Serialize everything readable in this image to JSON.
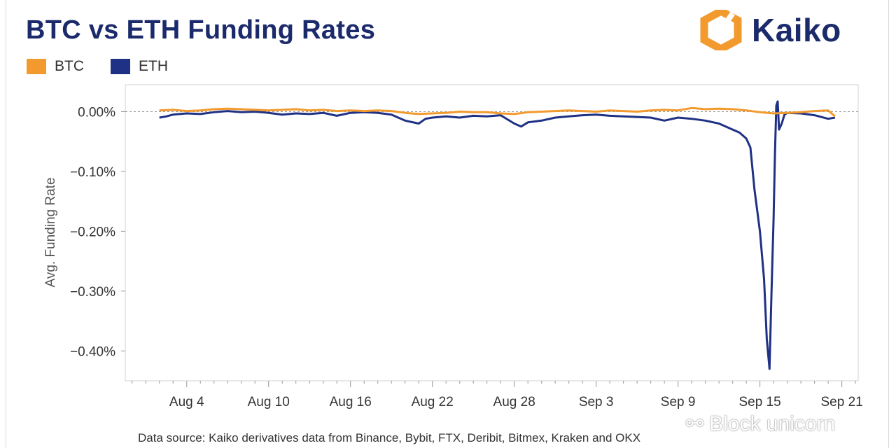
{
  "title": "BTC vs ETH Funding Rates",
  "brand": {
    "name": "Kaiko"
  },
  "legend": [
    {
      "label": "BTC",
      "color": "#f29a2e"
    },
    {
      "label": "ETH",
      "color": "#1f3184"
    }
  ],
  "source_note": "Data source: Kaiko derivatives data from Binance, Bybit, FTX, Deribit, Bitmex, Kraken and OKX",
  "watermark": "Block unicorn",
  "chart_data": {
    "type": "line",
    "title": "BTC vs ETH Funding Rates",
    "ylabel": "Avg. Funding Rate",
    "xlabel": "",
    "ylim": [
      -0.45,
      0.045
    ],
    "y_ticks": [
      "0.00%",
      "−0.10%",
      "−0.20%",
      "−0.30%",
      "−0.40%"
    ],
    "y_tick_values": [
      0,
      -0.1,
      -0.2,
      -0.3,
      -0.4
    ],
    "x_ticks": [
      "Aug 4",
      "Aug 10",
      "Aug 16",
      "Aug 22",
      "Aug 28",
      "Sep 3",
      "Sep 9",
      "Sep 15",
      "Sep 21"
    ],
    "x_tick_days": [
      4,
      10,
      16,
      22,
      28,
      34,
      40,
      46,
      52
    ],
    "xlim_days": [
      -0.5,
      53.2
    ],
    "x_unit": "day of August (Sep 1 = day 32)",
    "grid": false,
    "zero_line": "dashed",
    "legend_position": "top-left",
    "series": [
      {
        "name": "BTC",
        "color": "#f29a2e",
        "points": [
          [
            2,
            0.002
          ],
          [
            3,
            0.003
          ],
          [
            4,
            0.001
          ],
          [
            5,
            0.002
          ],
          [
            6,
            0.004
          ],
          [
            7,
            0.005
          ],
          [
            8,
            0.004
          ],
          [
            9,
            0.003
          ],
          [
            10,
            0.002
          ],
          [
            11,
            0.003
          ],
          [
            12,
            0.004
          ],
          [
            13,
            0.002
          ],
          [
            14,
            0.003
          ],
          [
            15,
            0.001
          ],
          [
            16,
            0.002
          ],
          [
            17,
            0.001
          ],
          [
            18,
            0.002
          ],
          [
            19,
            0.001
          ],
          [
            20,
            -0.002
          ],
          [
            21,
            -0.004
          ],
          [
            22,
            -0.003
          ],
          [
            23,
            -0.002
          ],
          [
            24,
            0.0
          ],
          [
            25,
            -0.001
          ],
          [
            26,
            -0.001
          ],
          [
            27,
            -0.003
          ],
          [
            28,
            -0.004
          ],
          [
            29,
            -0.001
          ],
          [
            30,
            0.0
          ],
          [
            31,
            0.001
          ],
          [
            32,
            0.002
          ],
          [
            33,
            0.001
          ],
          [
            34,
            0.0
          ],
          [
            35,
            0.002
          ],
          [
            36,
            0.001
          ],
          [
            37,
            0.0
          ],
          [
            38,
            0.002
          ],
          [
            39,
            0.003
          ],
          [
            40,
            0.002
          ],
          [
            41,
            0.006
          ],
          [
            42,
            0.004
          ],
          [
            43,
            0.005
          ],
          [
            44,
            0.004
          ],
          [
            45,
            0.002
          ],
          [
            46,
            -0.001
          ],
          [
            47,
            -0.003
          ],
          [
            48,
            -0.002
          ],
          [
            49,
            -0.001
          ],
          [
            50,
            0.001
          ],
          [
            51,
            0.002
          ],
          [
            51.5,
            -0.008
          ]
        ]
      },
      {
        "name": "ETH",
        "color": "#1f3184",
        "points": [
          [
            2,
            -0.01
          ],
          [
            2.5,
            -0.008
          ],
          [
            3,
            -0.005
          ],
          [
            4,
            -0.003
          ],
          [
            5,
            -0.004
          ],
          [
            6,
            -0.001
          ],
          [
            7,
            0.001
          ],
          [
            8,
            -0.001
          ],
          [
            9,
            0.0
          ],
          [
            10,
            -0.002
          ],
          [
            11,
            -0.005
          ],
          [
            12,
            -0.003
          ],
          [
            13,
            -0.004
          ],
          [
            14,
            -0.002
          ],
          [
            15,
            -0.007
          ],
          [
            16,
            -0.002
          ],
          [
            17,
            -0.001
          ],
          [
            18,
            -0.002
          ],
          [
            19,
            -0.005
          ],
          [
            20,
            -0.015
          ],
          [
            21,
            -0.02
          ],
          [
            21.5,
            -0.012
          ],
          [
            22,
            -0.01
          ],
          [
            23,
            -0.008
          ],
          [
            24,
            -0.01
          ],
          [
            25,
            -0.007
          ],
          [
            26,
            -0.008
          ],
          [
            27,
            -0.006
          ],
          [
            28,
            -0.02
          ],
          [
            28.5,
            -0.025
          ],
          [
            29,
            -0.018
          ],
          [
            30,
            -0.015
          ],
          [
            31,
            -0.01
          ],
          [
            32,
            -0.008
          ],
          [
            33,
            -0.006
          ],
          [
            34,
            -0.005
          ],
          [
            35,
            -0.007
          ],
          [
            36,
            -0.008
          ],
          [
            37,
            -0.009
          ],
          [
            38,
            -0.01
          ],
          [
            39,
            -0.015
          ],
          [
            40,
            -0.01
          ],
          [
            41,
            -0.012
          ],
          [
            42,
            -0.015
          ],
          [
            43,
            -0.02
          ],
          [
            44,
            -0.03
          ],
          [
            44.5,
            -0.035
          ],
          [
            45,
            -0.045
          ],
          [
            45.3,
            -0.06
          ],
          [
            45.6,
            -0.13
          ],
          [
            46,
            -0.2
          ],
          [
            46.3,
            -0.28
          ],
          [
            46.5,
            -0.38
          ],
          [
            46.7,
            -0.43
          ],
          [
            46.85,
            -0.3
          ],
          [
            47,
            -0.18
          ],
          [
            47.1,
            -0.07
          ],
          [
            47.2,
            0.01
          ],
          [
            47.3,
            0.017
          ],
          [
            47.4,
            -0.03
          ],
          [
            47.6,
            -0.02
          ],
          [
            47.8,
            -0.005
          ],
          [
            48,
            -0.002
          ],
          [
            49,
            -0.003
          ],
          [
            50,
            -0.006
          ],
          [
            51,
            -0.012
          ],
          [
            51.5,
            -0.01
          ]
        ]
      }
    ]
  }
}
